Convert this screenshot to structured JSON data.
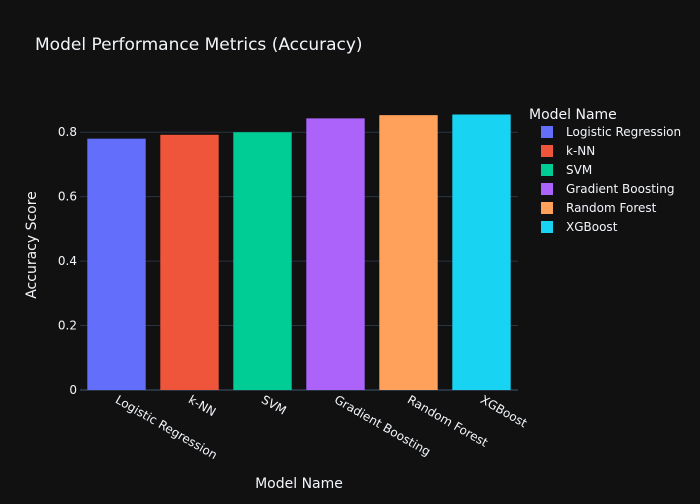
{
  "chart_data": {
    "type": "bar",
    "title": "Model Performance Metrics (Accuracy)",
    "xlabel": "Model Name",
    "ylabel": "Accuracy Score",
    "categories": [
      "Logistic Regression",
      "k-NN",
      "SVM",
      "Gradient Boosting",
      "Random Forest",
      "XGBoost"
    ],
    "values": [
      0.78,
      0.792,
      0.8,
      0.843,
      0.853,
      0.855
    ],
    "colors": [
      "#636efa",
      "#ef553b",
      "#00cc96",
      "#ab63fa",
      "#ffa15a",
      "#19d3f3"
    ],
    "ylim": [
      0,
      0.9
    ],
    "yticks": [
      0,
      0.2,
      0.4,
      0.6,
      0.8
    ],
    "ytick_labels": [
      "0",
      "0.2",
      "0.4",
      "0.6",
      "0.8"
    ],
    "grid": true,
    "legend": {
      "title": "Model Name",
      "placement": "right",
      "entries": [
        "Logistic Regression",
        "k-NN",
        "SVM",
        "Gradient Boosting",
        "Random Forest",
        "XGBoost"
      ]
    }
  },
  "style": {
    "background": "#111111",
    "grid_color": "#283442",
    "text_color": "#f2f5fa"
  }
}
